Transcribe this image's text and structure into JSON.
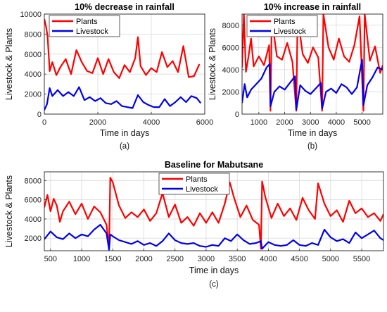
{
  "colors": {
    "plants": "#ff0000",
    "livestock": "#0000ee"
  },
  "chart_data": [
    {
      "type": "line",
      "title": "10% decrease in rainfall",
      "caption": "(a)",
      "xlabel": "Time in days",
      "ylabel": "Livestock & Plants",
      "xlim": [
        0,
        6000
      ],
      "ylim": [
        0,
        10000
      ],
      "xticks": [
        "0",
        "2000",
        "4000",
        "6000"
      ],
      "yticks": [
        "0",
        "2000",
        "4000",
        "6000",
        "8000",
        "10000"
      ],
      "xtick_values": [
        0,
        2000,
        4000,
        6000
      ],
      "ytick_values": [
        0,
        2000,
        4000,
        6000,
        8000,
        10000
      ],
      "grid": true,
      "legend_position": "top-left",
      "series": [
        {
          "name": "Plants",
          "x": [
            0,
            60,
            120,
            200,
            300,
            450,
            600,
            800,
            1000,
            1200,
            1400,
            1600,
            1800,
            2000,
            2200,
            2400,
            2600,
            2800,
            3000,
            3200,
            3400,
            3500,
            3600,
            3800,
            4000,
            4200,
            4400,
            4600,
            4800,
            5000,
            5200,
            5400,
            5600,
            5800
          ],
          "y": [
            9500,
            8800,
            7800,
            4300,
            5200,
            3900,
            4700,
            5500,
            4000,
            6400,
            5200,
            4300,
            4100,
            5600,
            4000,
            5500,
            4200,
            3600,
            4900,
            4200,
            5600,
            7700,
            4800,
            3900,
            4600,
            4200,
            6200,
            4700,
            5300,
            4200,
            6800,
            3700,
            3800,
            5000
          ]
        },
        {
          "name": "Livestock",
          "x": [
            0,
            100,
            200,
            300,
            500,
            700,
            900,
            1100,
            1300,
            1500,
            1700,
            1900,
            2100,
            2300,
            2500,
            2700,
            2900,
            3100,
            3300,
            3500,
            3700,
            3900,
            4100,
            4300,
            4500,
            4700,
            4900,
            5100,
            5300,
            5500,
            5700,
            5850
          ],
          "y": [
            400,
            1000,
            2600,
            1800,
            2400,
            1800,
            2200,
            1800,
            2700,
            1400,
            1700,
            1300,
            1600,
            1100,
            1000,
            1300,
            800,
            700,
            600,
            1900,
            1200,
            900,
            700,
            700,
            1500,
            800,
            1200,
            1700,
            1200,
            1800,
            1600,
            1100
          ]
        }
      ]
    },
    {
      "type": "line",
      "title": "10% increase in rainfall",
      "caption": "(b)",
      "xlabel": "Time in days",
      "ylabel": "Livestock & Plants",
      "xlim": [
        350,
        5800
      ],
      "ylim": [
        0,
        9000
      ],
      "xticks": [
        "1000",
        "2000",
        "3000",
        "4000",
        "5000"
      ],
      "yticks": [
        "0",
        "2000",
        "4000",
        "6000",
        "8000"
      ],
      "xtick_values": [
        1000,
        2000,
        3000,
        4000,
        5000
      ],
      "ytick_values": [
        0,
        2000,
        4000,
        6000,
        8000
      ],
      "grid": true,
      "legend_position": "top-left",
      "series": [
        {
          "name": "Plants",
          "x": [
            350,
            420,
            500,
            600,
            700,
            800,
            1000,
            1200,
            1400,
            1450,
            1500,
            1700,
            1900,
            2100,
            2300,
            2450,
            2500,
            2700,
            2900,
            3100,
            3300,
            3450,
            3500,
            3700,
            3900,
            4100,
            4300,
            4500,
            4700,
            4900,
            5050,
            5100,
            5300,
            5500,
            5700,
            5800
          ],
          "y": [
            4200,
            9000,
            3800,
            5200,
            6800,
            4300,
            5200,
            4400,
            6200,
            300,
            8600,
            5200,
            4900,
            6400,
            4700,
            300,
            8800,
            5400,
            4600,
            6000,
            5100,
            300,
            9000,
            6000,
            4900,
            6800,
            5200,
            4700,
            6200,
            8800,
            300,
            9000,
            4800,
            6100,
            3700,
            4400
          ]
        },
        {
          "name": "Livestock",
          "x": [
            350,
            450,
            550,
            700,
            900,
            1100,
            1300,
            1420,
            1450,
            1600,
            1800,
            2000,
            2200,
            2400,
            2450,
            2600,
            2800,
            3000,
            3200,
            3400,
            3450,
            3600,
            3800,
            4000,
            4200,
            4400,
            4600,
            4800,
            5000,
            5050,
            5200,
            5400,
            5600,
            5800
          ],
          "y": [
            1000,
            2700,
            1500,
            2200,
            2700,
            3200,
            4200,
            4500,
            700,
            2000,
            2500,
            2200,
            2800,
            3400,
            400,
            2600,
            2100,
            1800,
            2300,
            2800,
            500,
            2000,
            2300,
            1900,
            2700,
            2400,
            1800,
            2400,
            4900,
            800,
            2600,
            3300,
            4200,
            4000
          ]
        }
      ]
    },
    {
      "type": "line",
      "title": "Baseline for Mabutsane",
      "caption": "(c)",
      "xlabel": "Time in days",
      "ylabel": "Livestock & Plants",
      "xlim": [
        400,
        5850
      ],
      "ylim": [
        700,
        8900
      ],
      "xticks": [
        "500",
        "1000",
        "1500",
        "2000",
        "2500",
        "3000",
        "3500",
        "4000",
        "4500",
        "5000",
        "5500"
      ],
      "yticks": [
        "2000",
        "4000",
        "6000",
        "8000"
      ],
      "xtick_values": [
        500,
        1000,
        1500,
        2000,
        2500,
        3000,
        3500,
        4000,
        4500,
        5000,
        5500
      ],
      "ytick_values": [
        2000,
        4000,
        6000,
        8000
      ],
      "grid": true,
      "legend_position": "top-center",
      "series": [
        {
          "name": "Plants",
          "x": [
            400,
            450,
            500,
            550,
            600,
            650,
            700,
            800,
            900,
            1000,
            1100,
            1200,
            1300,
            1400,
            1440,
            1460,
            1500,
            1600,
            1700,
            1800,
            1900,
            2000,
            2100,
            2200,
            2300,
            2400,
            2500,
            2600,
            2700,
            2800,
            2900,
            3000,
            3100,
            3200,
            3300,
            3380,
            3450,
            3550,
            3650,
            3750,
            3850,
            3880,
            3900,
            3950,
            4050,
            4150,
            4250,
            4350,
            4450,
            4550,
            4650,
            4750,
            4800,
            4900,
            5000,
            5100,
            5200,
            5300,
            5400,
            5500,
            5600,
            5700,
            5800,
            5850
          ],
          "y": [
            5200,
            6500,
            4800,
            6100,
            5400,
            3700,
            4800,
            5800,
            4500,
            5600,
            4000,
            5300,
            4700,
            3400,
            900,
            8300,
            7800,
            5400,
            4100,
            4700,
            4200,
            5000,
            3800,
            4600,
            6700,
            4200,
            5500,
            3600,
            4200,
            3300,
            4600,
            3600,
            4700,
            3600,
            5600,
            7800,
            6200,
            4200,
            5400,
            3900,
            3400,
            900,
            7900,
            6300,
            4100,
            5600,
            4300,
            5100,
            3900,
            6200,
            4900,
            4000,
            7700,
            5600,
            4300,
            4900,
            3700,
            5900,
            4600,
            5100,
            4200,
            4600,
            3800,
            4500
          ]
        },
        {
          "name": "Livestock",
          "x": [
            400,
            500,
            600,
            700,
            800,
            900,
            1000,
            1100,
            1200,
            1300,
            1400,
            1440,
            1460,
            1500,
            1600,
            1700,
            1800,
            1900,
            2000,
            2100,
            2200,
            2300,
            2400,
            2500,
            2600,
            2700,
            2800,
            2900,
            3000,
            3100,
            3200,
            3300,
            3400,
            3500,
            3600,
            3700,
            3800,
            3880,
            3900,
            4000,
            4100,
            4200,
            4300,
            4400,
            4500,
            4600,
            4700,
            4800,
            4900,
            5000,
            5100,
            5200,
            5300,
            5400,
            5500,
            5600,
            5700,
            5800,
            5850
          ],
          "y": [
            1900,
            2700,
            2100,
            1900,
            2500,
            2000,
            2400,
            2200,
            2900,
            3400,
            2500,
            800,
            2400,
            2200,
            1800,
            1600,
            1400,
            1700,
            1300,
            1500,
            1200,
            1700,
            2500,
            1800,
            1500,
            1400,
            1500,
            1200,
            1100,
            1300,
            1200,
            2000,
            1700,
            2400,
            1800,
            1400,
            1500,
            1700,
            900,
            1600,
            1300,
            1200,
            1300,
            1800,
            1300,
            1200,
            1500,
            1300,
            2900,
            2100,
            1700,
            1900,
            1500,
            2600,
            2000,
            2400,
            2800,
            2000,
            1800
          ]
        }
      ]
    }
  ]
}
